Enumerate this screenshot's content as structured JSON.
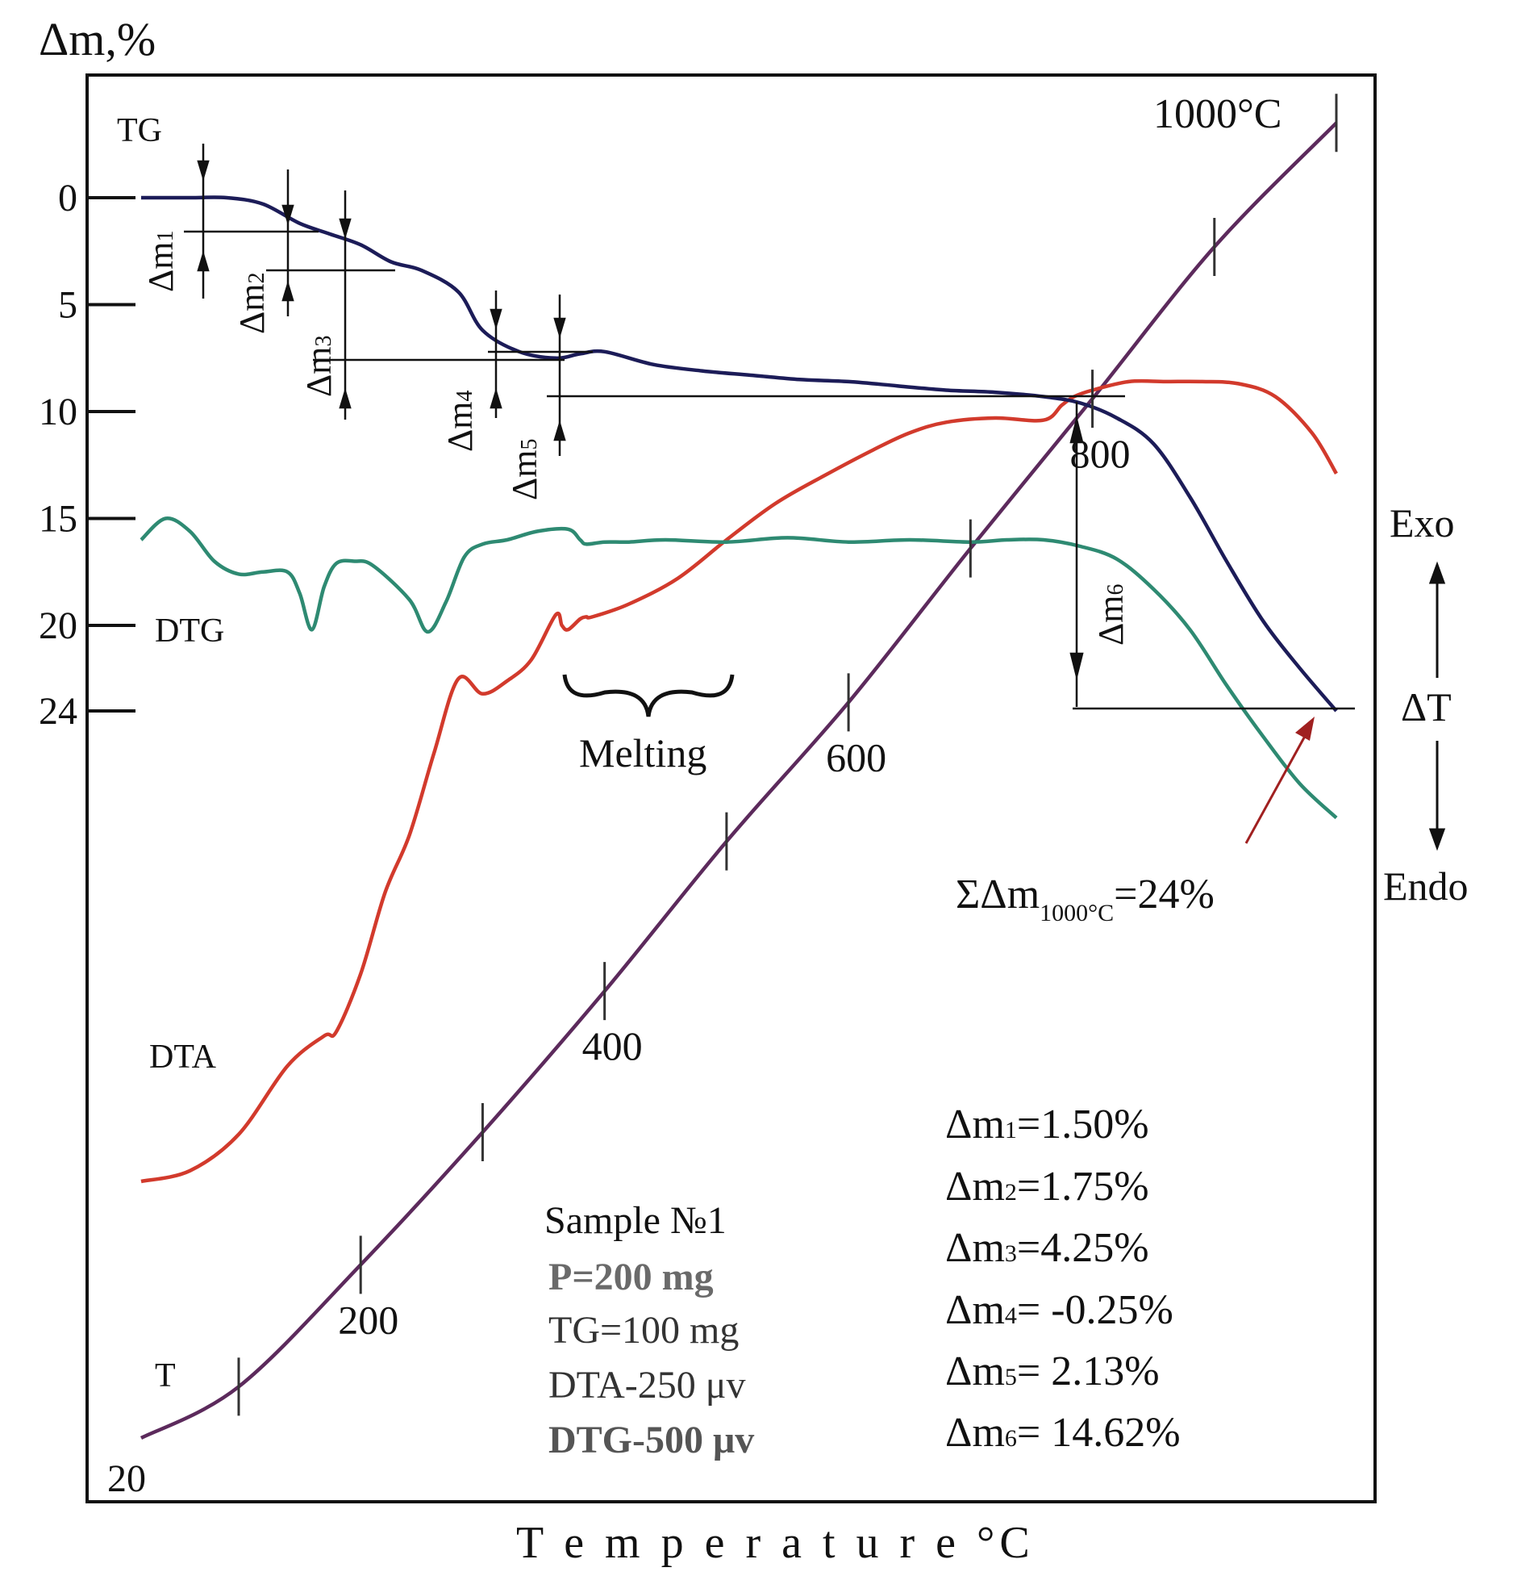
{
  "colors": {
    "tg": "#1c1c58",
    "dtg": "#2e8a72",
    "dta": "#d23a2c",
    "t": "#5c2a5c",
    "axis": "#111111",
    "arrow": "#a02020"
  },
  "chart_data": {
    "type": "line",
    "title": "",
    "ylabel": "Δm,%",
    "xlabel": "T e m p e r a t u r e °C",
    "y_ticks": [
      "0",
      "5",
      "10",
      "15",
      "20",
      "24"
    ],
    "y_tick_values": [
      0,
      5,
      10,
      15,
      20,
      24
    ],
    "ylim": [
      -4.5,
      60
    ],
    "x_range_label_start": "20",
    "x_range_label_end": "1000°C",
    "series": [
      {
        "name": "TG",
        "label": "TG",
        "units": "Δm,%",
        "x": [
          20,
          60,
          90,
          120,
          150,
          175,
          200,
          225,
          250,
          280,
          300,
          330,
          360,
          380,
          400,
          440,
          480,
          520,
          560,
          600,
          640,
          680,
          720,
          760,
          790,
          820,
          850,
          880,
          910,
          940,
          970,
          1000
        ],
        "y": [
          0,
          0,
          0,
          0.3,
          1.2,
          1.7,
          2.2,
          3.0,
          3.4,
          4.4,
          6.2,
          7.2,
          7.5,
          7.3,
          7.2,
          7.8,
          8.1,
          8.3,
          8.5,
          8.6,
          8.8,
          9.0,
          9.1,
          9.3,
          9.6,
          10.3,
          11.5,
          14.0,
          17.0,
          19.8,
          22.0,
          24.0
        ]
      },
      {
        "name": "DTG",
        "label": "DTG",
        "x": [
          20,
          40,
          60,
          80,
          100,
          120,
          140,
          150,
          160,
          170,
          180,
          195,
          210,
          240,
          255,
          270,
          285,
          300,
          320,
          345,
          370,
          380,
          385,
          400,
          420,
          450,
          500,
          550,
          600,
          650,
          700,
          730,
          760,
          790,
          820,
          850,
          880,
          910,
          940,
          970,
          1000
        ],
        "y": [
          16,
          15,
          15.6,
          17,
          17.6,
          17.5,
          17.5,
          18.5,
          20.2,
          18.2,
          17.1,
          17.0,
          17.2,
          18.8,
          20.3,
          18.9,
          16.8,
          16.2,
          16.0,
          15.6,
          15.5,
          16.0,
          16.2,
          16.1,
          16.1,
          16.0,
          16.1,
          15.9,
          16.1,
          16.0,
          16.1,
          16.0,
          16.0,
          16.3,
          16.9,
          18.3,
          20.2,
          22.8,
          25.2,
          27.4,
          29.0
        ]
      },
      {
        "name": "DTA",
        "label": "DTA",
        "x": [
          20,
          60,
          100,
          140,
          170,
          180,
          200,
          220,
          240,
          260,
          280,
          300,
          320,
          340,
          360,
          365,
          370,
          380,
          385,
          390,
          420,
          460,
          500,
          540,
          580,
          620,
          650,
          680,
          720,
          760,
          775,
          785,
          800,
          830,
          860,
          890,
          920,
          950,
          980,
          1000
        ],
        "y": [
          46.0,
          45.5,
          43.8,
          40.6,
          39.2,
          39.0,
          36.3,
          32.5,
          29.8,
          26.0,
          22.5,
          23.2,
          22.6,
          21.6,
          19.5,
          20.0,
          20.2,
          19.7,
          19.6,
          19.6,
          19.0,
          17.8,
          16.0,
          14.3,
          13.0,
          11.8,
          11.0,
          10.5,
          10.3,
          10.4,
          9.7,
          9.3,
          9.0,
          8.6,
          8.6,
          8.6,
          8.7,
          9.3,
          11.0,
          12.9
        ]
      },
      {
        "name": "T",
        "label": "T",
        "x": [
          20,
          100,
          200,
          300,
          400,
          500,
          600,
          700,
          800,
          900,
          1000
        ],
        "y": [
          58.0,
          55.6,
          49.9,
          43.7,
          37.1,
          30.1,
          23.6,
          16.4,
          9.4,
          2.3,
          -3.5
        ],
        "tick_marks": [
          100,
          200,
          300,
          400,
          500,
          600,
          700,
          800,
          900,
          1000
        ],
        "tick_labels": [
          "200",
          "400",
          "600",
          "800"
        ]
      }
    ],
    "annotations": {
      "melting": "Melting",
      "sum": {
        "prefix": "ΣΔm",
        "subscript": "1000°C",
        "suffix": "=24%"
      },
      "exo": "Exo",
      "delta_t": "ΔT",
      "endo": "Endo",
      "dm_labels": [
        {
          "base": "Δm",
          "sub": "1"
        },
        {
          "base": "Δm",
          "sub": "2"
        },
        {
          "base": "Δm",
          "sub": "3"
        },
        {
          "base": "Δm",
          "sub": "4"
        },
        {
          "base": "Δm",
          "sub": "5"
        },
        {
          "base": "Δm",
          "sub": "6"
        }
      ]
    },
    "sample_info": [
      "Sample №1",
      "P=200 mg",
      "TG=100 mg",
      "DTA-250 μv",
      "DTG-500 μv"
    ],
    "mass_losses": [
      {
        "base": "Δm",
        "sub": "1",
        "value": "=1.50%"
      },
      {
        "base": "Δm",
        "sub": "2",
        "value": "=1.75%"
      },
      {
        "base": "Δm",
        "sub": "3",
        "value": "=4.25%"
      },
      {
        "base": "Δm",
        "sub": "4",
        "value": "= -0.25%"
      },
      {
        "base": "Δm",
        "sub": "5",
        "value": "= 2.13%"
      },
      {
        "base": "Δm",
        "sub": "6",
        "value": "= 14.62%"
      }
    ]
  }
}
